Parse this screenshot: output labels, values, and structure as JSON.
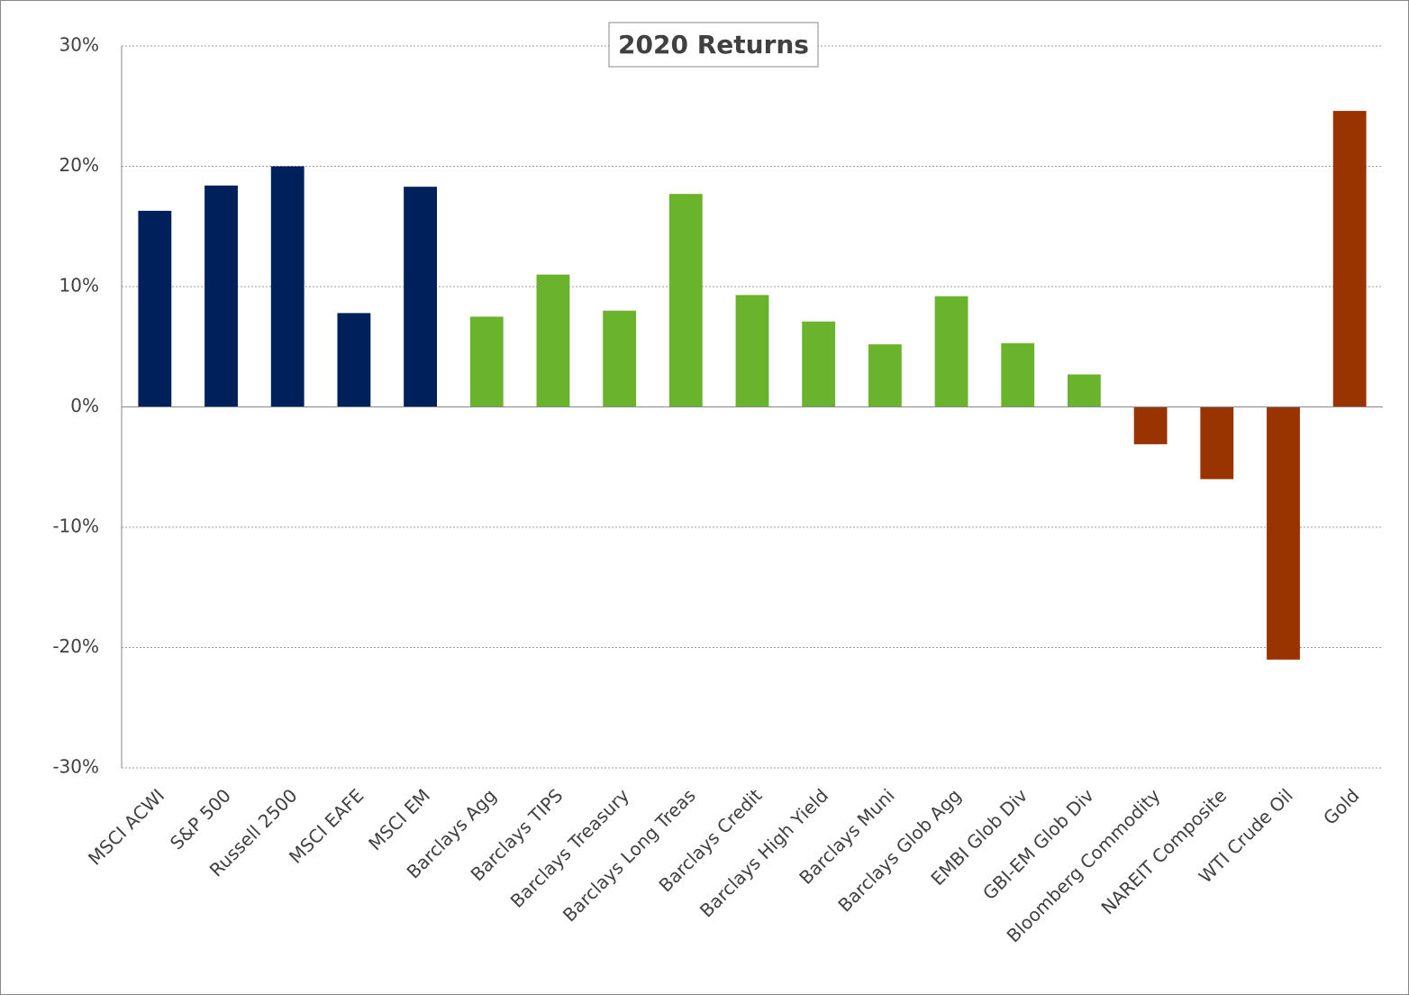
{
  "chart_data": {
    "type": "bar",
    "title": "2020 Returns",
    "categories": [
      "MSCI ACWI",
      "S&P 500",
      "Russell 2500",
      "MSCI EAFE",
      "MSCI EM",
      "Barclays Agg",
      "Barclays TIPS",
      "Barclays Treasury",
      "Barclays Long Treas",
      "Barclays Credit",
      "Barclays High Yield",
      "Barclays Muni",
      "Barclays Glob Agg",
      "EMBI Glob Div",
      "GBI-EM Glob Div",
      "Bloomberg Commodity",
      "NAREIT Composite",
      "WTI Crude Oil",
      "Gold"
    ],
    "values": [
      16.3,
      18.4,
      20.0,
      7.8,
      18.3,
      7.5,
      11.0,
      8.0,
      17.7,
      9.3,
      7.1,
      5.2,
      9.2,
      5.3,
      2.7,
      -3.1,
      -6.0,
      -21.0,
      24.6
    ],
    "colors": [
      "#00205b",
      "#00205b",
      "#00205b",
      "#00205b",
      "#00205b",
      "#6ab42d",
      "#6ab42d",
      "#6ab42d",
      "#6ab42d",
      "#6ab42d",
      "#6ab42d",
      "#6ab42d",
      "#6ab42d",
      "#6ab42d",
      "#6ab42d",
      "#993300",
      "#993300",
      "#993300",
      "#993300"
    ],
    "ylim": [
      -30,
      30
    ],
    "yticks": [
      {
        "value": -30,
        "label": "-30%"
      },
      {
        "value": -20,
        "label": "-20%"
      },
      {
        "value": -10,
        "label": "-10%"
      },
      {
        "value": 0,
        "label": "0%"
      },
      {
        "value": 10,
        "label": "10%"
      },
      {
        "value": 20,
        "label": "20%"
      },
      {
        "value": 30,
        "label": "30%"
      }
    ],
    "grid": true
  }
}
